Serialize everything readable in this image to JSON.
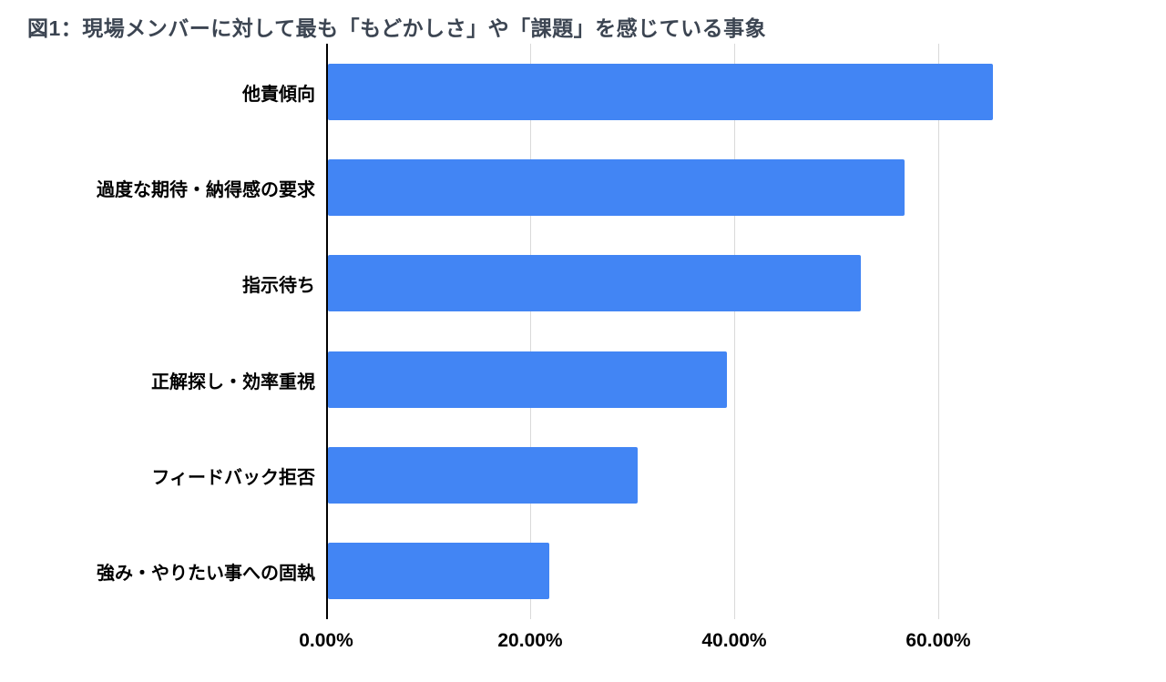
{
  "chart_data": {
    "type": "bar",
    "orientation": "horizontal",
    "title": "図1：現場メンバーに対して最も「もどかしさ」や「課題」を感じている事象",
    "categories": [
      "他責傾向",
      "過度な期待・納得感の要求",
      "指示待ち",
      "正解探し・効率重視",
      "フィードバック拒否",
      "強み・やりたい事への固執"
    ],
    "values": [
      65.2,
      56.5,
      52.2,
      39.1,
      30.4,
      21.7
    ],
    "value_unit": "%",
    "x_tick_labels": [
      "0.00%",
      "20.00%",
      "40.00%",
      "60.00%"
    ],
    "x_tick_values": [
      0,
      20,
      40,
      60
    ],
    "xlim": [
      0,
      80
    ],
    "xlabel": "",
    "ylabel": "",
    "grid": "vertical-only",
    "legend": false,
    "colors": {
      "bar": "#4285f4",
      "gridline": "#d9d9d9",
      "axis": "#000000",
      "title": "#3c4552",
      "label": "#000000",
      "background": "#ffffff"
    }
  }
}
